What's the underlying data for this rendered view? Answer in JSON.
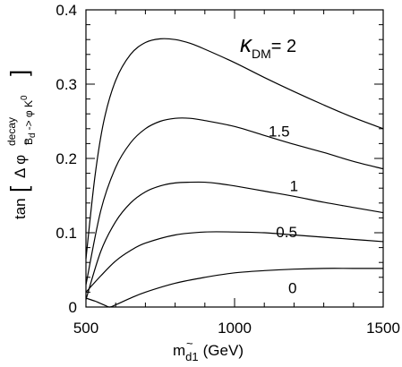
{
  "chart_data": {
    "type": "line",
    "xlabel": {
      "main": "m",
      "sub": "d1",
      "accent": "~",
      "unit": "(GeV)"
    },
    "ylabel": {
      "prefix": "tan",
      "delta_phi": "Δ φ",
      "sup": "decay",
      "sub": "B",
      "sub_rest": "d",
      "arrow": "-> φ K",
      "arrow_sup": "0"
    },
    "legend_label": {
      "symbol": "κ",
      "sub": "DM",
      "eq": "= 2"
    },
    "xlim": [
      500,
      1500
    ],
    "ylim": [
      0,
      0.4
    ],
    "x_ticks": [
      500,
      1000,
      1500
    ],
    "x_tick_labels": [
      "500",
      "1000",
      "1500"
    ],
    "y_ticks": [
      0,
      0.1,
      0.2,
      0.3,
      0.4
    ],
    "y_tick_labels": [
      "0",
      "0.1",
      "0.2",
      "0.3",
      "0.4"
    ],
    "grid": false,
    "series": [
      {
        "name": "2",
        "x": [
          500,
          530,
          560,
          600,
          650,
          700,
          750,
          800,
          850,
          900,
          1000,
          1100,
          1200,
          1300,
          1400,
          1500
        ],
        "y": [
          0.065,
          0.175,
          0.25,
          0.305,
          0.34,
          0.356,
          0.361,
          0.36,
          0.355,
          0.347,
          0.329,
          0.309,
          0.29,
          0.272,
          0.255,
          0.24
        ]
      },
      {
        "name": "1.5",
        "x": [
          500,
          550,
          600,
          650,
          700,
          750,
          800,
          850,
          900,
          1000,
          1100,
          1200,
          1300,
          1400,
          1500
        ],
        "y": [
          0.03,
          0.13,
          0.188,
          0.221,
          0.24,
          0.25,
          0.254,
          0.254,
          0.251,
          0.243,
          0.231,
          0.219,
          0.208,
          0.196,
          0.186
        ]
      },
      {
        "name": "1",
        "x": [
          500,
          550,
          600,
          650,
          700,
          750,
          800,
          850,
          900,
          950,
          1000,
          1100,
          1200,
          1300,
          1400,
          1500
        ],
        "y": [
          0.01,
          0.075,
          0.115,
          0.14,
          0.155,
          0.163,
          0.167,
          0.168,
          0.168,
          0.166,
          0.163,
          0.156,
          0.149,
          0.141,
          0.134,
          0.127
        ]
      },
      {
        "name": "0.5",
        "x": [
          500,
          550,
          600,
          650,
          700,
          800,
          900,
          1000,
          1100,
          1200,
          1300,
          1400,
          1500
        ],
        "y": [
          0.02,
          0.042,
          0.062,
          0.076,
          0.086,
          0.097,
          0.101,
          0.101,
          0.1,
          0.097,
          0.094,
          0.091,
          0.088
        ]
      },
      {
        "name": "0",
        "x": [
          500,
          530,
          560,
          580,
          600,
          650,
          700,
          800,
          900,
          1000,
          1100,
          1200,
          1300,
          1400,
          1500
        ],
        "y": [
          0.012,
          0.008,
          0.003,
          0.0,
          0.003,
          0.012,
          0.02,
          0.032,
          0.04,
          0.046,
          0.049,
          0.051,
          0.052,
          0.052,
          0.052
        ]
      }
    ],
    "curve_labels": [
      {
        "text": "1.5",
        "x": 1150,
        "y": 0.237
      },
      {
        "text": "1",
        "x": 1200,
        "y": 0.163
      },
      {
        "text": "0.5",
        "x": 1175,
        "y": 0.101
      },
      {
        "text": "0",
        "x": 1195,
        "y": 0.026
      }
    ]
  }
}
